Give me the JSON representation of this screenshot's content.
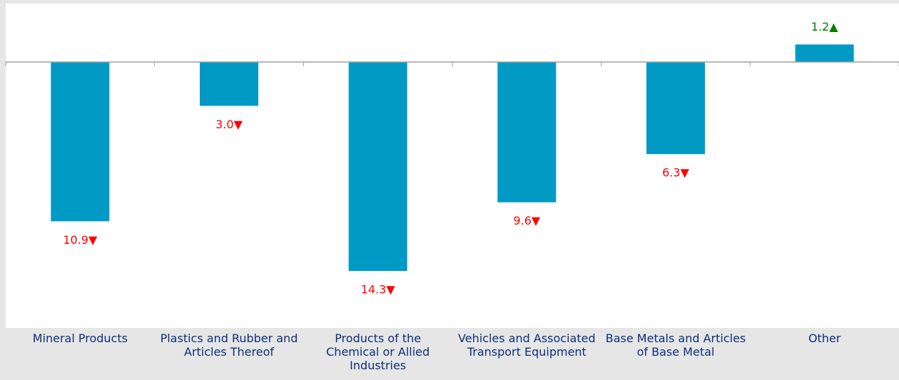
{
  "chart_data": {
    "type": "bar",
    "categories": [
      "Mineral Products",
      "Plastics and Rubber and Articles Thereof",
      "Products of the Chemical or Allied Industries",
      "Vehicles and Associated Transport Equipment",
      "Base Metals and Articles of Base Metal",
      "Other"
    ],
    "values": [
      -10.9,
      -3.0,
      -14.3,
      -9.6,
      -6.3,
      1.2
    ],
    "value_labels": [
      "10.9▼",
      "3.0▼",
      "14.3▼",
      "9.6▼",
      "6.3▼",
      "1.2▲"
    ],
    "color": "#009ac4",
    "ylim": [
      -18.2,
      4
    ]
  }
}
